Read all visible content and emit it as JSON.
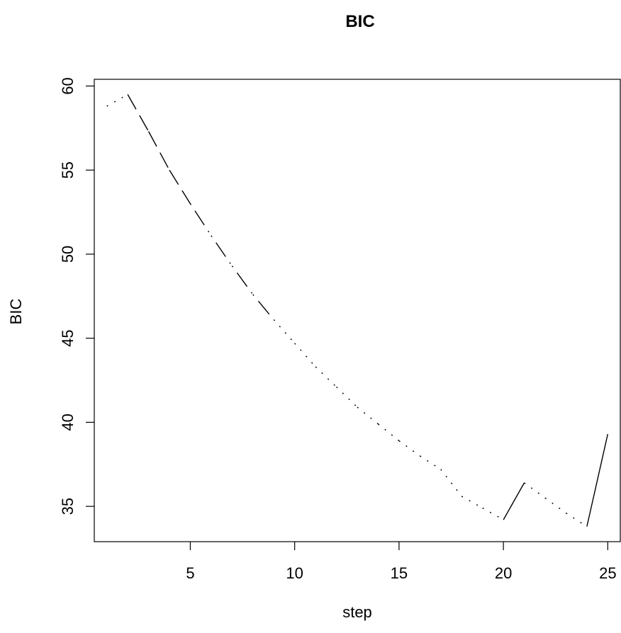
{
  "chart_data": {
    "type": "line",
    "title": "BIC",
    "xlabel": "step",
    "ylabel": "BIC",
    "x": [
      1,
      2,
      3,
      4,
      5,
      6,
      7,
      8,
      9,
      10,
      11,
      12,
      13,
      14,
      15,
      16,
      17,
      18,
      19,
      20,
      21,
      22,
      23,
      24,
      25
    ],
    "y": [
      58.8,
      59.5,
      57.3,
      55.0,
      53.0,
      51.1,
      49.3,
      47.6,
      46.1,
      44.7,
      43.3,
      42.1,
      40.9,
      39.9,
      38.9,
      38.0,
      37.2,
      35.6,
      34.9,
      34.2,
      36.4,
      35.5,
      34.6,
      33.8,
      39.3
    ],
    "xlim": [
      0.4,
      25.6
    ],
    "ylim": [
      32.9,
      60.4
    ],
    "xticks": [
      5,
      10,
      15,
      20,
      25
    ],
    "yticks": [
      35,
      40,
      45,
      50,
      55,
      60
    ],
    "segments": [
      {
        "from": 1,
        "to": 2,
        "style": "dotted"
      },
      {
        "from": 2,
        "to": 3,
        "style": "dashed"
      },
      {
        "from": 3,
        "to": 4,
        "style": "dashed"
      },
      {
        "from": 4,
        "to": 5,
        "style": "dashed"
      },
      {
        "from": 5,
        "to": 6,
        "style": "dashdot"
      },
      {
        "from": 6,
        "to": 7,
        "style": "dashdot"
      },
      {
        "from": 7,
        "to": 8,
        "style": "dashdot"
      },
      {
        "from": 8,
        "to": 9,
        "style": "dashdot"
      },
      {
        "from": 9,
        "to": 10,
        "style": "dotted"
      },
      {
        "from": 10,
        "to": 11,
        "style": "dotted"
      },
      {
        "from": 11,
        "to": 12,
        "style": "dotted"
      },
      {
        "from": 12,
        "to": 13,
        "style": "dotted"
      },
      {
        "from": 13,
        "to": 14,
        "style": "dotted"
      },
      {
        "from": 14,
        "to": 15,
        "style": "dotted"
      },
      {
        "from": 15,
        "to": 16,
        "style": "dotted"
      },
      {
        "from": 16,
        "to": 17,
        "style": "dotted"
      },
      {
        "from": 17,
        "to": 18,
        "style": "dotted"
      },
      {
        "from": 18,
        "to": 19,
        "style": "dotted"
      },
      {
        "from": 19,
        "to": 20,
        "style": "dotted"
      },
      {
        "from": 20,
        "to": 21,
        "style": "solid"
      },
      {
        "from": 21,
        "to": 22,
        "style": "dotted"
      },
      {
        "from": 22,
        "to": 23,
        "style": "dotted"
      },
      {
        "from": 23,
        "to": 24,
        "style": "dotted"
      },
      {
        "from": 24,
        "to": 25,
        "style": "solid"
      }
    ],
    "grid": false,
    "legend": "none"
  }
}
